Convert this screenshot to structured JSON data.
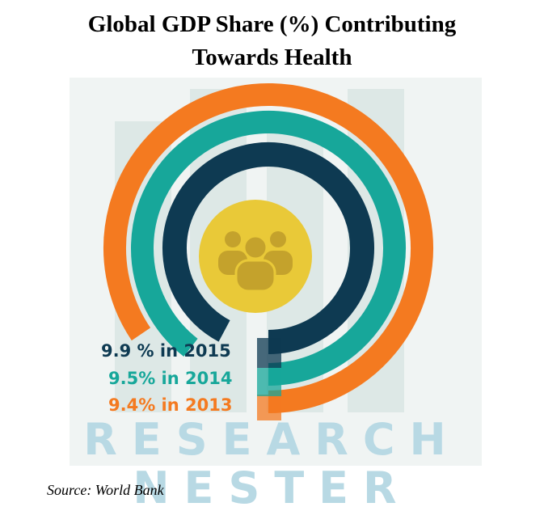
{
  "title_line1": "Global GDP Share (%) Contributing",
  "title_line2": "Towards Health",
  "source": "Source: World Bank",
  "watermark": {
    "line1": "RESEARCH",
    "line2": "NESTER"
  },
  "colors": {
    "2015": "#0e3a52",
    "2014": "#17a79a",
    "2013": "#f47a20",
    "center_circle": "#e9c938",
    "center_icon": "#c4a22c"
  },
  "icon": "group-people-icon",
  "chart_data": {
    "type": "radial-bar",
    "title": "Global GDP Share (%) Contributing Towards Health",
    "series": [
      {
        "year": "2015",
        "value": 9.9,
        "label": "9.9 % in 2015"
      },
      {
        "year": "2014",
        "value": 9.5,
        "label": "9.5% in 2014"
      },
      {
        "year": "2013",
        "value": 9.4,
        "label": "9.4% in 2013"
      }
    ]
  }
}
